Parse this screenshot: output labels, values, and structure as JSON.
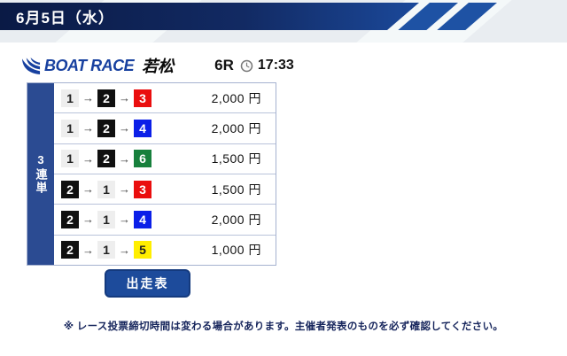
{
  "theme": {
    "header_dark": "#0a1a45",
    "header_blue": "#1c4da2",
    "stripe_blue": "#1e52a4",
    "brand_blue": "#17409f",
    "panel_blue": "#2b4b92",
    "button_blue": "#1d4b9b",
    "border_light": "#a6b2d0",
    "note_navy": "#16255c",
    "bg_gray": "#e9edf1"
  },
  "header": {
    "date_label": "6月5日（水）"
  },
  "race_info": {
    "brand": "BOAT RACE",
    "venue": "若松",
    "race_number": "6R",
    "close_time": "17:33"
  },
  "bet_table": {
    "bet_type_label": "3連単",
    "arrow": "→",
    "boat_colors": {
      "1": {
        "bg": "#eeeeee",
        "fg": "#222222"
      },
      "2": {
        "bg": "#101010",
        "fg": "#ffffff"
      },
      "3": {
        "bg": "#ea0e0e",
        "fg": "#ffffff"
      },
      "4": {
        "bg": "#0b1fe8",
        "fg": "#ffffff"
      },
      "5": {
        "bg": "#ffee00",
        "fg": "#222222"
      },
      "6": {
        "bg": "#17803c",
        "fg": "#ffffff"
      }
    },
    "rows": [
      {
        "combo": [
          1,
          2,
          3
        ],
        "amount": "2,000 円"
      },
      {
        "combo": [
          1,
          2,
          4
        ],
        "amount": "2,000 円"
      },
      {
        "combo": [
          1,
          2,
          6
        ],
        "amount": "1,500 円"
      },
      {
        "combo": [
          2,
          1,
          3
        ],
        "amount": "1,500 円"
      },
      {
        "combo": [
          2,
          1,
          4
        ],
        "amount": "2,000 円"
      },
      {
        "combo": [
          2,
          1,
          5
        ],
        "amount": "1,000 円"
      }
    ]
  },
  "actions": {
    "racecard_button_label": "出走表"
  },
  "footer": {
    "note": "※ レース投票締切時間は変わる場合があります。主催者発表のものを必ず確認してください。"
  }
}
